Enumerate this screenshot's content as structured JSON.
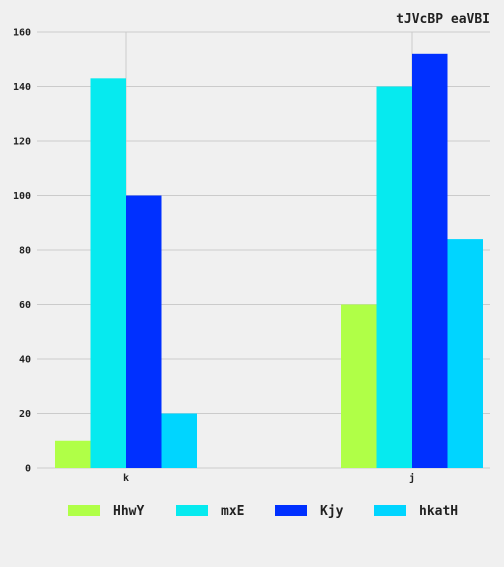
{
  "chart_data": {
    "type": "bar",
    "title": "tJVcBP  eaVBI",
    "xlabel": "",
    "ylabel": "",
    "categories": [
      "k",
      "j"
    ],
    "series": [
      {
        "name": "HhwY",
        "values": [
          10,
          60
        ],
        "color": "#b0ff47"
      },
      {
        "name": "mxE",
        "values": [
          143,
          140
        ],
        "color": "#06eaef"
      },
      {
        "name": "Kjy",
        "values": [
          100,
          152
        ],
        "color": "#0030ff"
      },
      {
        "name": "hkatH",
        "values": [
          20,
          84
        ],
        "color": "#00d5ff"
      }
    ],
    "ylim": [
      0,
      160
    ],
    "yticks": [
      0,
      20,
      40,
      60,
      80,
      100,
      120,
      140,
      160
    ],
    "grid": true,
    "legend_position": "bottom"
  }
}
